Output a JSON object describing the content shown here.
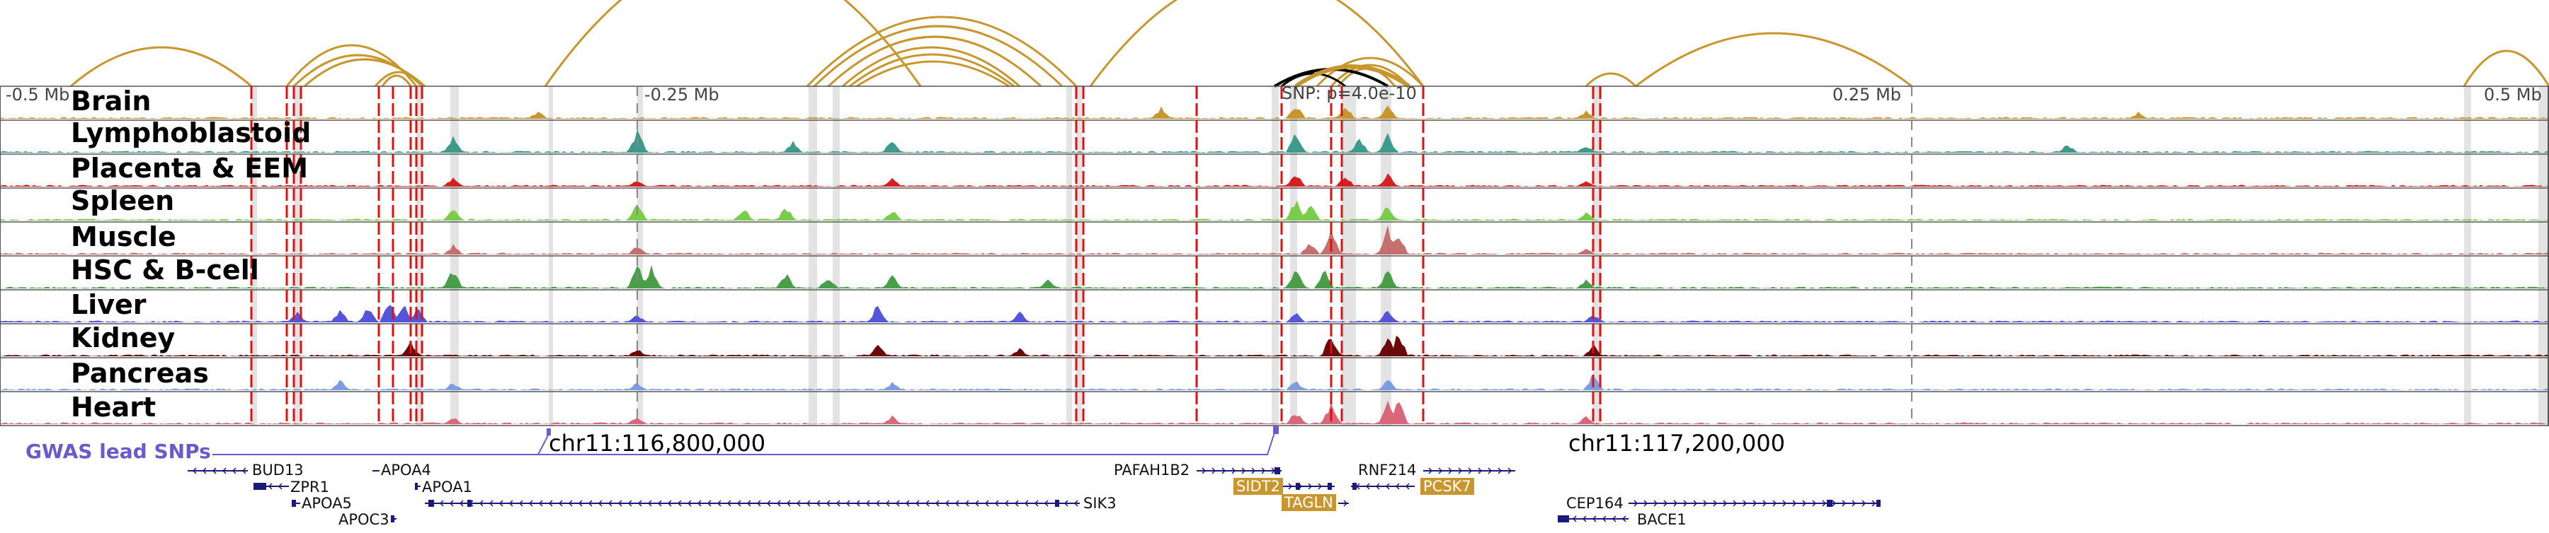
{
  "coordinates": {
    "left_label": "-0.5 Mb",
    "left_mid_label": "-0.25 Mb",
    "snp_label": "SNP: p=4.0e-10",
    "right_mid_label": "0.25 Mb",
    "right_label": "0.5 Mb"
  },
  "tracks": [
    {
      "name": "Brain",
      "color": "#c8962c",
      "peaks": [
        [
          760,
          0.3
        ],
        [
          1640,
          0.45
        ],
        [
          1830,
          0.6
        ],
        [
          1900,
          0.5
        ],
        [
          1960,
          0.5
        ],
        [
          2240,
          0.3
        ],
        [
          3020,
          0.25
        ]
      ]
    },
    {
      "name": "Lymphoblastoid",
      "color": "#3d9b8c",
      "peaks": [
        [
          640,
          0.7
        ],
        [
          900,
          0.9
        ],
        [
          1120,
          0.4
        ],
        [
          1260,
          0.5
        ],
        [
          1830,
          0.8
        ],
        [
          1920,
          0.6
        ],
        [
          1960,
          0.7
        ],
        [
          2240,
          0.3
        ],
        [
          2920,
          0.35
        ]
      ]
    },
    {
      "name": "Placenta & EEM",
      "color": "#d42020",
      "peaks": [
        [
          640,
          0.35
        ],
        [
          900,
          0.3
        ],
        [
          1260,
          0.3
        ],
        [
          1830,
          0.5
        ],
        [
          1900,
          0.45
        ],
        [
          1960,
          0.5
        ],
        [
          2240,
          0.25
        ]
      ]
    },
    {
      "name": "Spleen",
      "color": "#7acc4a",
      "peaks": [
        [
          640,
          0.5
        ],
        [
          900,
          0.7
        ],
        [
          1050,
          0.5
        ],
        [
          1110,
          0.55
        ],
        [
          1260,
          0.4
        ],
        [
          1830,
          0.8
        ],
        [
          1850,
          0.7
        ],
        [
          1960,
          0.6
        ],
        [
          2240,
          0.3
        ]
      ]
    },
    {
      "name": "Muscle",
      "color": "#c76e6e",
      "peaks": [
        [
          640,
          0.35
        ],
        [
          900,
          0.35
        ],
        [
          1850,
          0.5
        ],
        [
          1880,
          0.9
        ],
        [
          1960,
          1.0
        ],
        [
          1975,
          0.9
        ],
        [
          2240,
          0.25
        ]
      ]
    },
    {
      "name": "HSC & B-cell",
      "color": "#4a9e4a",
      "peaks": [
        [
          640,
          0.75
        ],
        [
          900,
          1.0
        ],
        [
          920,
          0.9
        ],
        [
          1110,
          0.6
        ],
        [
          1170,
          0.5
        ],
        [
          1260,
          0.5
        ],
        [
          1480,
          0.35
        ],
        [
          1830,
          0.8
        ],
        [
          1870,
          0.7
        ],
        [
          1960,
          0.7
        ],
        [
          2240,
          0.3
        ]
      ]
    },
    {
      "name": "Liver",
      "color": "#5454dd",
      "peaks": [
        [
          420,
          0.4
        ],
        [
          480,
          0.5
        ],
        [
          520,
          0.6
        ],
        [
          550,
          0.8
        ],
        [
          570,
          0.7
        ],
        [
          590,
          0.6
        ],
        [
          900,
          0.3
        ],
        [
          1240,
          0.7
        ],
        [
          1440,
          0.4
        ],
        [
          1830,
          0.4
        ],
        [
          1960,
          0.5
        ],
        [
          2250,
          0.35
        ]
      ]
    },
    {
      "name": "Kidney",
      "color": "#6b0a0a",
      "peaks": [
        [
          580,
          0.6
        ],
        [
          900,
          0.3
        ],
        [
          1240,
          0.5
        ],
        [
          1440,
          0.3
        ],
        [
          1880,
          0.9
        ],
        [
          1960,
          0.8
        ],
        [
          1975,
          0.9
        ],
        [
          2250,
          0.45
        ]
      ]
    },
    {
      "name": "Pancreas",
      "color": "#7b9ee0",
      "peaks": [
        [
          480,
          0.4
        ],
        [
          640,
          0.3
        ],
        [
          900,
          0.3
        ],
        [
          1260,
          0.3
        ],
        [
          1830,
          0.4
        ],
        [
          1960,
          0.45
        ],
        [
          2250,
          0.6
        ]
      ]
    },
    {
      "name": "Heart",
      "color": "#d9667a",
      "peaks": [
        [
          640,
          0.3
        ],
        [
          900,
          0.3
        ],
        [
          1260,
          0.3
        ],
        [
          1830,
          0.5
        ],
        [
          1880,
          0.85
        ],
        [
          1960,
          1.0
        ],
        [
          1975,
          0.95
        ],
        [
          2240,
          0.3
        ]
      ]
    }
  ],
  "gwas": {
    "label": "GWAS lead SNPs"
  },
  "chromosome_labels": {
    "left": "chr11:116,800,000",
    "right": "chr11:117,200,000"
  },
  "genes": [
    {
      "name": "BUD13",
      "highlight": false
    },
    {
      "name": "ZPR1",
      "highlight": false
    },
    {
      "name": "APOA5",
      "highlight": false
    },
    {
      "name": "APOC3",
      "highlight": false
    },
    {
      "name": "APOA4",
      "highlight": false
    },
    {
      "name": "APOA1",
      "highlight": false
    },
    {
      "name": "SIK3",
      "highlight": false
    },
    {
      "name": "PAFAH1B2",
      "highlight": false
    },
    {
      "name": "SIDT2",
      "highlight": true
    },
    {
      "name": "TAGLN",
      "highlight": true
    },
    {
      "name": "RNF214",
      "highlight": false
    },
    {
      "name": "PCSK7",
      "highlight": true
    },
    {
      "name": "CEP164",
      "highlight": false
    },
    {
      "name": "BACE1",
      "highlight": false
    }
  ],
  "colors": {
    "arc": "#c8962c",
    "arc_focus": "#000000",
    "red_line": "#e01010",
    "grey_band": "#d9d9d9",
    "gene": "#1a1a7a",
    "gwas": "#6a5acd"
  }
}
